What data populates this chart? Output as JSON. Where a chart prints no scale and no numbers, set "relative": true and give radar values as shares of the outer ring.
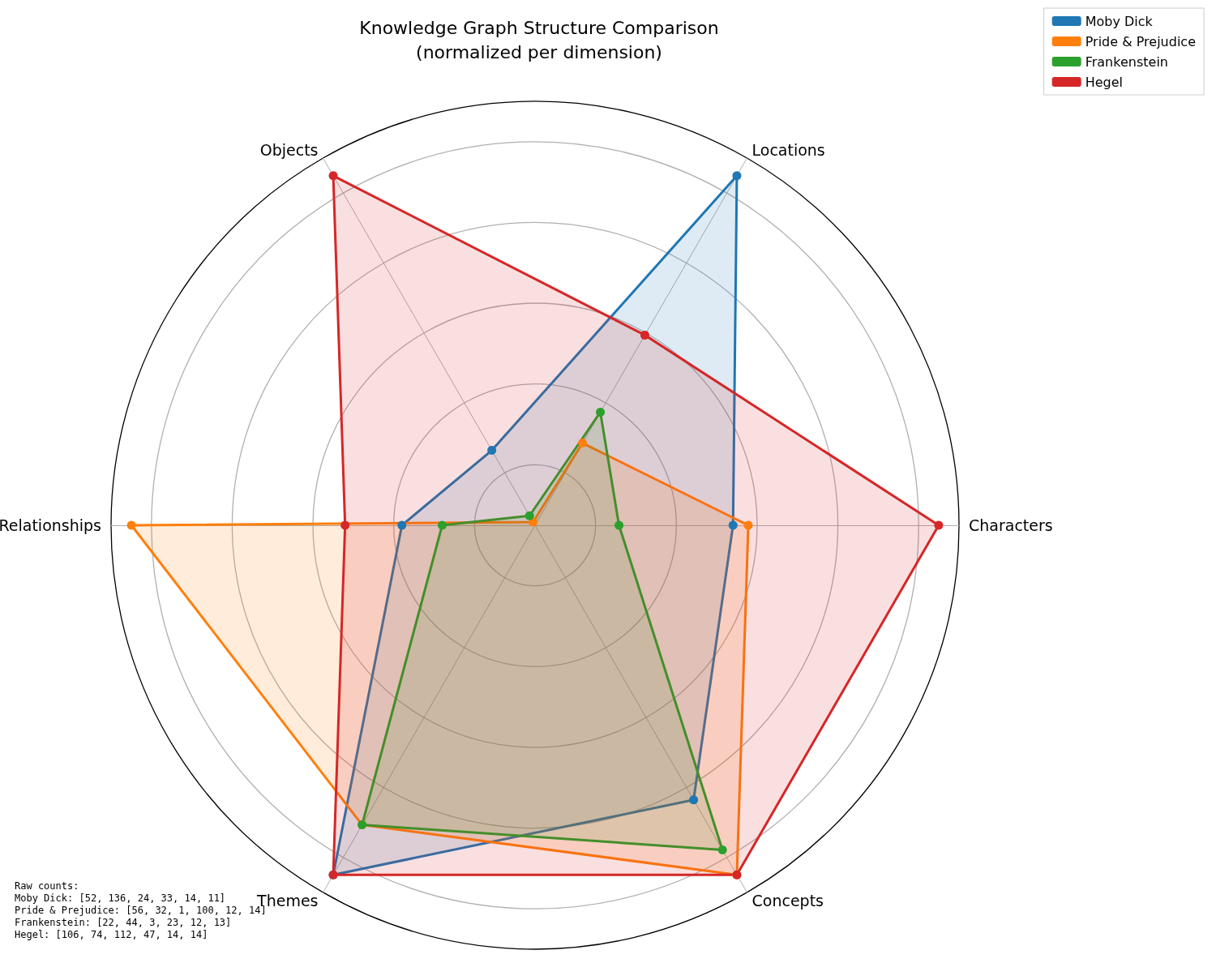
{
  "chart_data": {
    "type": "radar",
    "title": "Knowledge Graph Structure Comparison\n(normalized per dimension)",
    "categories": [
      "Locations",
      "Characters",
      "Concepts",
      "Themes",
      "Relationships",
      "Objects"
    ],
    "relative": true,
    "marker": "circle",
    "line_style": "solid",
    "legend": "top right",
    "grid": true,
    "series": [
      {
        "name": "Moby Dick",
        "color": "#1f77b4",
        "values": [
          0.952,
          0.467,
          0.748,
          0.952,
          0.314,
          0.204
        ]
      },
      {
        "name": "Pride & Prejudice",
        "color": "#ff7f0e",
        "values": [
          0.224,
          0.503,
          0.952,
          0.816,
          0.952,
          0.009
        ]
      },
      {
        "name": "Frankenstein",
        "color": "#2ca02c",
        "values": [
          0.308,
          0.198,
          0.884,
          0.816,
          0.219,
          0.026
        ]
      },
      {
        "name": "Hegel",
        "color": "#d62728",
        "values": [
          0.518,
          0.952,
          0.952,
          0.952,
          0.448,
          0.952
        ]
      }
    ],
    "annotations": [
      "Raw counts:\nMoby Dick: [52, 136, 24, 33, 14, 11]\nPride & Prejudice: [56, 32, 1, 100, 12, 14]\nFrankenstein: [22, 44, 3, 23, 12, 13]\nHegel: [106, 74, 112, 47, 14, 14]"
    ]
  }
}
